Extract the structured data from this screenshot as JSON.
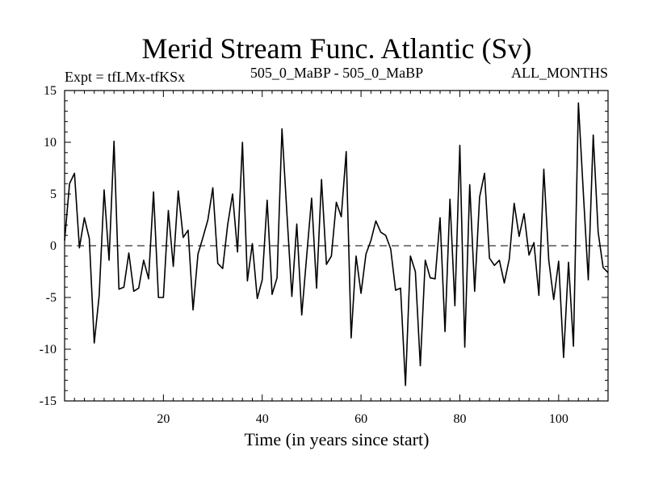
{
  "chart_data": {
    "type": "line",
    "title": "Merid Stream Func. Atlantic (Sv)",
    "subtitle_left": "Expt = tfLMx-tfKSx",
    "subtitle_center": "505_0_MaBP - 505_0_MaBP",
    "subtitle_right": "ALL_MONTHS",
    "xlabel": "Time (in years since start)",
    "ylabel": "",
    "xlim": [
      0,
      110
    ],
    "ylim": [
      -15,
      15
    ],
    "xticks": [
      20,
      40,
      60,
      80,
      100
    ],
    "yticks": [
      -15,
      -10,
      -5,
      0,
      5,
      10,
      15
    ],
    "zero_line": "dashed",
    "x": [
      0,
      1,
      2,
      3,
      4,
      5,
      6,
      7,
      8,
      9,
      10,
      11,
      12,
      13,
      14,
      15,
      16,
      17,
      18,
      19,
      20,
      21,
      22,
      23,
      24,
      25,
      26,
      27,
      28,
      29,
      30,
      31,
      32,
      33,
      34,
      35,
      36,
      37,
      38,
      39,
      40,
      41,
      42,
      43,
      44,
      45,
      46,
      47,
      48,
      49,
      50,
      51,
      52,
      53,
      54,
      55,
      56,
      57,
      58,
      59,
      60,
      61,
      62,
      63,
      64,
      65,
      66,
      67,
      68,
      69,
      70,
      71,
      72,
      73,
      74,
      75,
      76,
      77,
      78,
      79,
      80,
      81,
      82,
      83,
      84,
      85,
      86,
      87,
      88,
      89,
      90,
      91,
      92,
      93,
      94,
      95,
      96,
      97,
      98,
      99,
      100,
      101,
      102,
      103,
      104,
      105,
      106,
      107,
      108,
      109,
      110
    ],
    "values": [
      0.5,
      6.0,
      7.0,
      -0.2,
      2.7,
      0.7,
      -9.4,
      -4.8,
      5.4,
      -1.4,
      10.1,
      -4.2,
      -4.0,
      -0.7,
      -4.4,
      -4.1,
      -1.4,
      -3.2,
      5.2,
      -5.0,
      -5.0,
      3.4,
      -2.0,
      5.3,
      0.8,
      1.5,
      -6.2,
      -0.8,
      0.8,
      2.5,
      5.6,
      -1.7,
      -2.2,
      2.0,
      5.0,
      -0.6,
      10.0,
      -3.4,
      0.2,
      -5.1,
      -3.3,
      4.4,
      -4.7,
      -3.1,
      11.3,
      3.1,
      -4.9,
      2.1,
      -6.7,
      -1.0,
      4.6,
      -4.1,
      6.4,
      -1.8,
      -1.0,
      4.2,
      2.8,
      9.1,
      -8.9,
      -1.0,
      -4.6,
      -0.8,
      0.5,
      2.4,
      1.3,
      1.0,
      -0.3,
      -4.3,
      -4.1,
      -13.5,
      -1.0,
      -2.5,
      -11.6,
      -1.4,
      -3.1,
      -3.2,
      2.7,
      -8.3,
      4.5,
      -5.8,
      9.7,
      -9.8,
      5.9,
      -4.4,
      4.7,
      7.0,
      -1.2,
      -1.9,
      -1.4,
      -3.6,
      -1.3,
      4.1,
      0.9,
      3.1,
      -0.9,
      0.3,
      -4.8,
      7.4,
      -1.4,
      -5.2,
      -1.5,
      -10.8,
      -1.6,
      -9.7,
      13.8,
      5.1,
      -3.3,
      10.7,
      1.3,
      -2.1,
      -2.6
    ]
  }
}
